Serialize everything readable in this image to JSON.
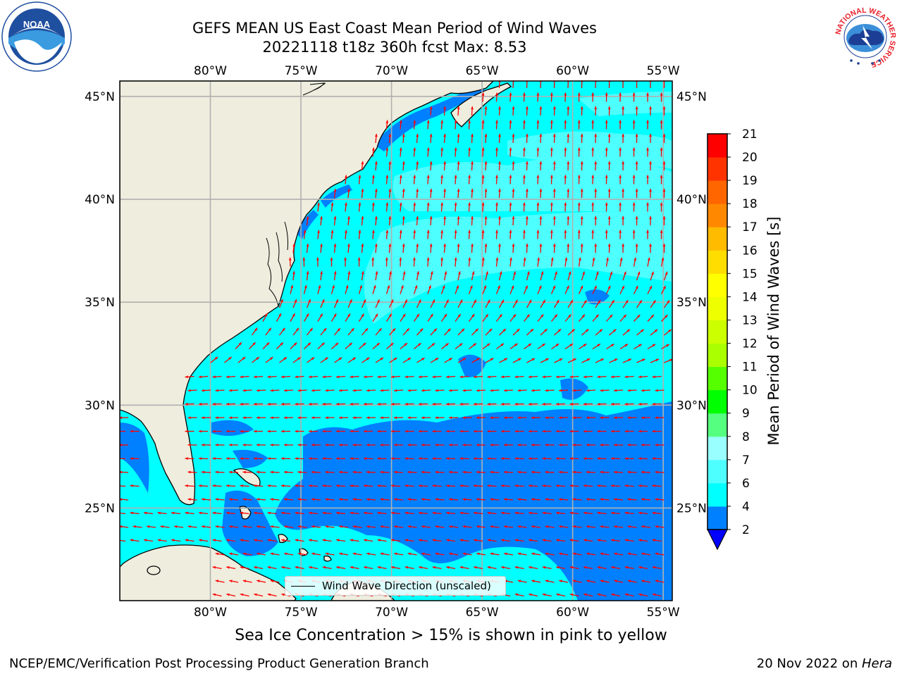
{
  "header": {
    "title_line1": "GEFS MEAN US East Coast Mean Period of Wind Waves",
    "title_line2": "20221118 t18z 360h fcst   Max: 8.53"
  },
  "logos": {
    "left": "noaa-logo",
    "left_text": "NOAA",
    "right": "national-weather-service-logo",
    "right_text": "NATIONAL WEATHER SERVICE"
  },
  "map": {
    "lon_labels": [
      "80°W",
      "75°W",
      "70°W",
      "65°W",
      "60°W",
      "55°W"
    ],
    "lat_labels": [
      "45°N",
      "40°N",
      "35°N",
      "30°N",
      "25°N"
    ],
    "lon_values": [
      -80,
      -75,
      -70,
      -65,
      -60,
      -55
    ],
    "lat_values": [
      45,
      40,
      35,
      30,
      25
    ],
    "extent": {
      "lon": [
        -85,
        -54.5
      ],
      "lat": [
        20.5,
        45.75
      ]
    },
    "colors": {
      "land": "#eeedde",
      "ocean_main": "#00ffff",
      "ocean_light": "#4dffff",
      "ocean_lighter": "#99ffff",
      "ocean_low": "#0080ff",
      "arrows": "#ff0000",
      "grid": "#b0b0b0"
    },
    "legend_label": "Wind Wave Direction (unscaled)"
  },
  "colorbar": {
    "label": "Mean Period of Wind Waves [s]",
    "ticks": [
      "2",
      "4",
      "6",
      "7",
      "8",
      "9",
      "10",
      "11",
      "12",
      "13",
      "14",
      "15",
      "16",
      "17",
      "18",
      "19",
      "20",
      "21"
    ],
    "colors": [
      "#0080ff",
      "#00ffff",
      "#4dffff",
      "#99ffff",
      "#55ff80",
      "#00ff00",
      "#55ff00",
      "#aaff00",
      "#ccff00",
      "#eeff00",
      "#ffff00",
      "#ffdd00",
      "#ffbb00",
      "#ff8800",
      "#ff6600",
      "#ff3300",
      "#ff0000"
    ],
    "extend_color": "#0000ff"
  },
  "footer": {
    "note": "Sea Ice Concentration > 15% is shown in pink to yellow",
    "left": "NCEP/EMC/Verification Post Processing Product Generation Branch",
    "right_date": "20 Nov 2022 on ",
    "right_machine": "Hera"
  }
}
